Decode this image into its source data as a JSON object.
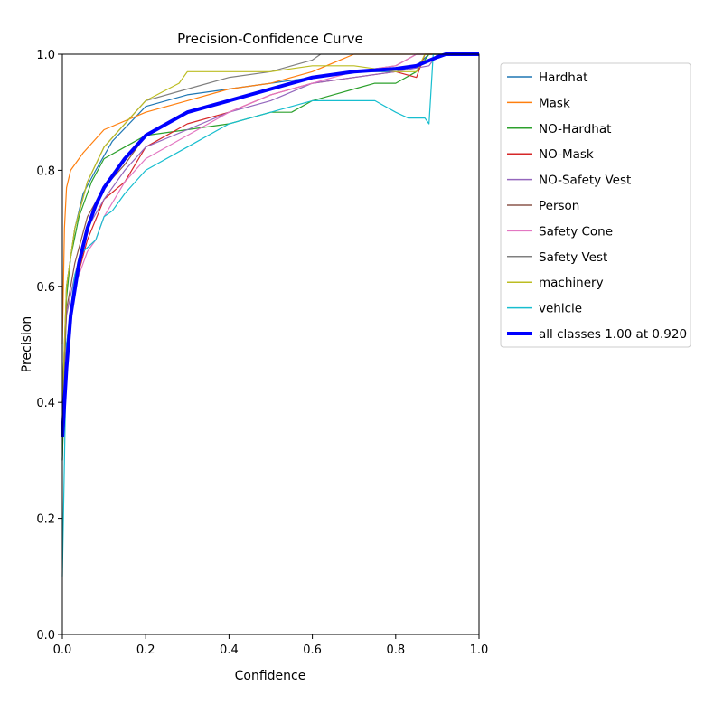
{
  "chart_data": {
    "type": "line",
    "title": "Precision-Confidence Curve",
    "xlabel": "Confidence",
    "ylabel": "Precision",
    "xlim": [
      0,
      1
    ],
    "ylim": [
      0,
      1
    ],
    "xticks": [
      "0.0",
      "0.2",
      "0.4",
      "0.6",
      "0.8",
      "1.0"
    ],
    "yticks": [
      "0.0",
      "0.2",
      "0.4",
      "0.6",
      "0.8",
      "1.0"
    ],
    "grid": false,
    "legend_position": "outside-right-top",
    "series": [
      {
        "name": "Hardhat",
        "color": "#1f77b4",
        "x": [
          0,
          0.01,
          0.03,
          0.05,
          0.08,
          0.12,
          0.2,
          0.3,
          0.4,
          0.5,
          0.6,
          0.7,
          0.8,
          0.85,
          0.88,
          1.0
        ],
        "y": [
          0.3,
          0.6,
          0.7,
          0.76,
          0.8,
          0.85,
          0.91,
          0.93,
          0.94,
          0.95,
          0.96,
          0.97,
          0.97,
          0.98,
          1.0,
          1.0
        ]
      },
      {
        "name": "Mask",
        "color": "#ff7f0e",
        "x": [
          0,
          0.005,
          0.01,
          0.02,
          0.05,
          0.1,
          0.2,
          0.3,
          0.4,
          0.5,
          0.6,
          0.7,
          1.0
        ],
        "y": [
          0.5,
          0.7,
          0.77,
          0.8,
          0.83,
          0.87,
          0.9,
          0.92,
          0.94,
          0.95,
          0.97,
          1.0,
          1.0
        ]
      },
      {
        "name": "NO-Hardhat",
        "color": "#2ca02c",
        "x": [
          0,
          0.01,
          0.02,
          0.04,
          0.07,
          0.1,
          0.15,
          0.2,
          0.3,
          0.4,
          0.5,
          0.55,
          0.6,
          0.65,
          0.7,
          0.75,
          0.8,
          0.85,
          0.88,
          1.0
        ],
        "y": [
          0.3,
          0.58,
          0.65,
          0.72,
          0.78,
          0.82,
          0.84,
          0.86,
          0.87,
          0.88,
          0.9,
          0.9,
          0.92,
          0.93,
          0.94,
          0.95,
          0.95,
          0.97,
          1.0,
          1.0
        ]
      },
      {
        "name": "NO-Mask",
        "color": "#d62728",
        "x": [
          0,
          0.01,
          0.03,
          0.06,
          0.1,
          0.15,
          0.2,
          0.3,
          0.4,
          0.5,
          0.6,
          0.7,
          0.8,
          0.85,
          0.87,
          1.0
        ],
        "y": [
          0.35,
          0.5,
          0.6,
          0.68,
          0.75,
          0.78,
          0.84,
          0.88,
          0.9,
          0.93,
          0.95,
          0.96,
          0.97,
          0.96,
          1.0,
          1.0
        ]
      },
      {
        "name": "NO-Safety Vest",
        "color": "#9467bd",
        "x": [
          0,
          0.01,
          0.03,
          0.06,
          0.1,
          0.15,
          0.2,
          0.3,
          0.4,
          0.5,
          0.6,
          0.7,
          0.8,
          0.88,
          0.9,
          1.0
        ],
        "y": [
          0.4,
          0.55,
          0.62,
          0.7,
          0.75,
          0.8,
          0.84,
          0.87,
          0.9,
          0.92,
          0.95,
          0.96,
          0.97,
          0.98,
          1.0,
          1.0
        ]
      },
      {
        "name": "Person",
        "color": "#8c564b",
        "x": [
          0,
          0.01,
          0.03,
          0.06,
          0.1,
          0.15,
          0.2,
          0.3,
          0.4,
          0.5,
          0.6,
          0.7,
          0.8,
          0.85,
          1.0
        ],
        "y": [
          0.4,
          0.56,
          0.64,
          0.72,
          0.77,
          0.81,
          0.86,
          0.9,
          0.92,
          0.94,
          0.96,
          0.97,
          0.98,
          1.0,
          1.0
        ]
      },
      {
        "name": "Safety Cone",
        "color": "#e377c2",
        "x": [
          0,
          0.01,
          0.03,
          0.06,
          0.08,
          0.1,
          0.15,
          0.2,
          0.3,
          0.4,
          0.5,
          0.6,
          0.7,
          0.8,
          0.85,
          1.0
        ],
        "y": [
          0.35,
          0.5,
          0.6,
          0.66,
          0.68,
          0.72,
          0.78,
          0.82,
          0.86,
          0.9,
          0.93,
          0.95,
          0.97,
          0.98,
          1.0,
          1.0
        ]
      },
      {
        "name": "Safety Vest",
        "color": "#7f7f7f",
        "x": [
          0,
          0.01,
          0.03,
          0.06,
          0.1,
          0.15,
          0.2,
          0.3,
          0.4,
          0.5,
          0.6,
          0.62,
          1.0
        ],
        "y": [
          0.4,
          0.6,
          0.7,
          0.78,
          0.84,
          0.88,
          0.92,
          0.94,
          0.96,
          0.97,
          0.99,
          1.0,
          1.0
        ]
      },
      {
        "name": "machinery",
        "color": "#bcbd22",
        "x": [
          0,
          0.01,
          0.03,
          0.06,
          0.1,
          0.15,
          0.2,
          0.28,
          0.3,
          0.4,
          0.5,
          0.6,
          0.7,
          0.8,
          0.85,
          0.87,
          1.0
        ],
        "y": [
          0.4,
          0.6,
          0.7,
          0.78,
          0.84,
          0.88,
          0.92,
          0.95,
          0.97,
          0.97,
          0.97,
          0.98,
          0.98,
          0.97,
          0.97,
          1.0,
          1.0
        ]
      },
      {
        "name": "vehicle",
        "color": "#17becf",
        "x": [
          0,
          0.01,
          0.03,
          0.05,
          0.08,
          0.1,
          0.12,
          0.15,
          0.2,
          0.3,
          0.4,
          0.5,
          0.6,
          0.7,
          0.75,
          0.8,
          0.83,
          0.87,
          0.88,
          0.89,
          1.0
        ],
        "y": [
          0.1,
          0.5,
          0.62,
          0.66,
          0.68,
          0.72,
          0.73,
          0.76,
          0.8,
          0.84,
          0.88,
          0.9,
          0.92,
          0.92,
          0.92,
          0.9,
          0.89,
          0.89,
          0.88,
          1.0,
          1.0
        ]
      },
      {
        "name": "all classes 1.00 at 0.920",
        "color": "#0000ff",
        "bold": true,
        "x": [
          0,
          0.01,
          0.02,
          0.04,
          0.06,
          0.08,
          0.1,
          0.15,
          0.2,
          0.25,
          0.3,
          0.35,
          0.4,
          0.5,
          0.6,
          0.7,
          0.8,
          0.85,
          0.9,
          0.92,
          1.0
        ],
        "y": [
          0.34,
          0.46,
          0.55,
          0.64,
          0.7,
          0.74,
          0.77,
          0.82,
          0.86,
          0.88,
          0.9,
          0.91,
          0.92,
          0.94,
          0.96,
          0.97,
          0.975,
          0.98,
          0.995,
          1.0,
          1.0
        ]
      }
    ]
  }
}
